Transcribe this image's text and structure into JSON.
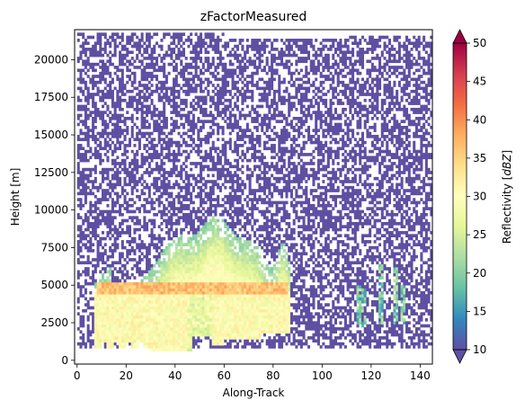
{
  "chart_data": {
    "type": "heatmap",
    "title": "zFactorMeasured",
    "xlabel": "Along-Track",
    "ylabel": "Height [m]",
    "xlim": [
      -1,
      145
    ],
    "ylim": [
      -250,
      22000
    ],
    "x_ticks": [
      "0",
      "20",
      "40",
      "60",
      "80",
      "100",
      "120",
      "140"
    ],
    "y_ticks": [
      "0",
      "2500",
      "5000",
      "7500",
      "10000",
      "12500",
      "15000",
      "17500",
      "20000"
    ],
    "colorbar": {
      "label": "Reflectivity [dBZ]",
      "label_text": "Reflectivity",
      "label_units": "dBZ",
      "ticks": [
        "10",
        "15",
        "20",
        "25",
        "30",
        "35",
        "40",
        "45",
        "50"
      ],
      "range": [
        10,
        50
      ],
      "extend": "both",
      "colormap": "Spectral_r",
      "stops": [
        "#5e4fa2",
        "#3288bd",
        "#66c2a5",
        "#abdda4",
        "#e6f598",
        "#ffffbf",
        "#fee08b",
        "#fdae61",
        "#f46d43",
        "#d53e4f",
        "#9e0142"
      ]
    },
    "regions": [
      {
        "name": "upper-noise-field",
        "x_range": [
          0,
          145
        ],
        "height_range": [
          800,
          21700
        ],
        "dbz": 10,
        "coverage": 0.55
      },
      {
        "name": "convective-complex",
        "x_range": [
          7,
          87
        ],
        "height_range": [
          600,
          9800
        ],
        "dbz": [
          22,
          30
        ]
      },
      {
        "name": "bright-band",
        "x_range": [
          8,
          86
        ],
        "height": 4800,
        "dbz": [
          33,
          39
        ]
      },
      {
        "name": "rain-shafts",
        "x_range": [
          8,
          87
        ],
        "height_range": [
          600,
          4600
        ],
        "dbz": [
          27,
          33
        ]
      },
      {
        "name": "isolated-echoes",
        "x_range": [
          114,
          135
        ],
        "height_range": [
          2000,
          6500
        ],
        "dbz": [
          15,
          24
        ]
      }
    ]
  }
}
